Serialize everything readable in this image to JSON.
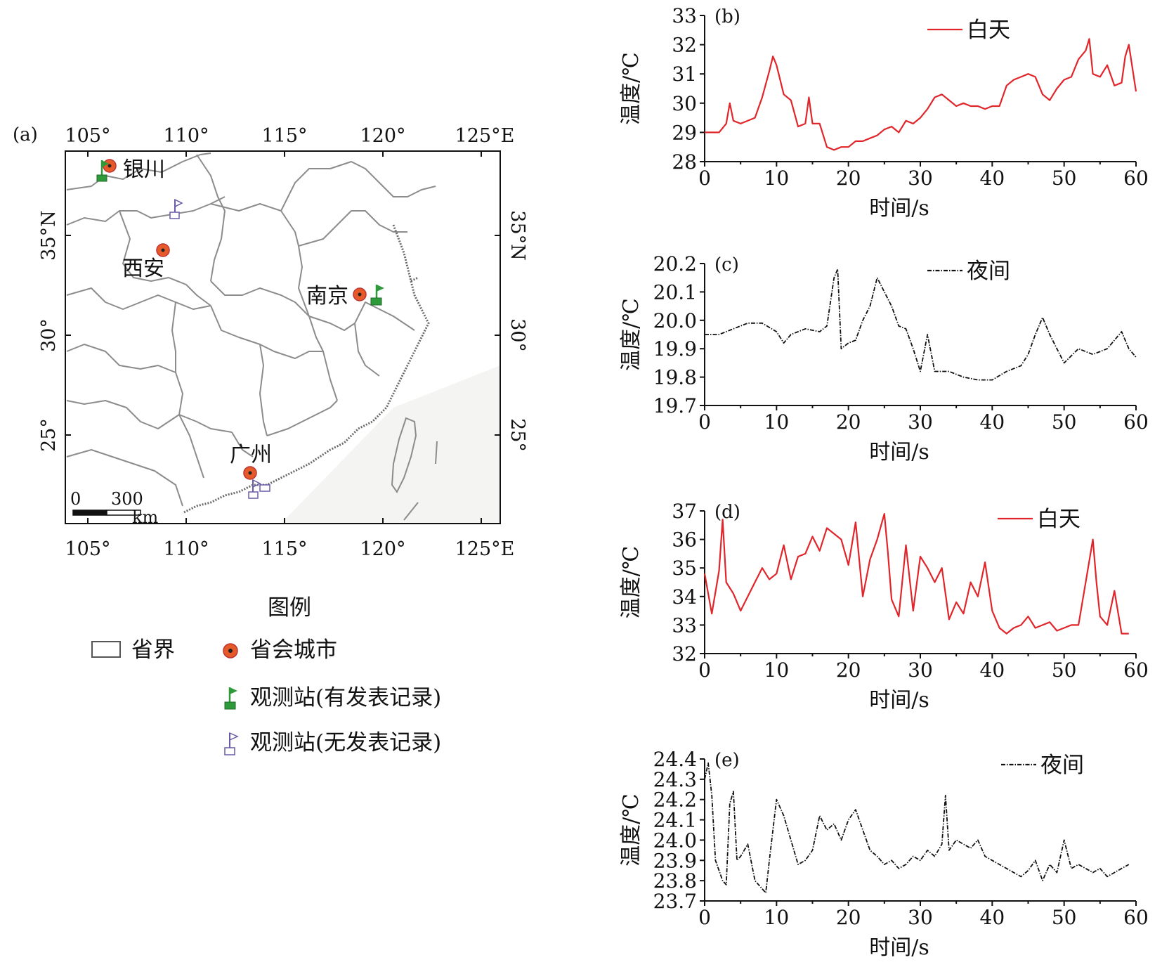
{
  "colors": {
    "day_line": "#e0262a",
    "night_line": "#111111",
    "capital_dot": "#e65a2a",
    "flag_recorded": "#2e9a3a",
    "flag_unrecorded": "#6a5aa8",
    "boundary": "#8c8c8c"
  },
  "map": {
    "panel_label": "(a)",
    "top_ticks": [
      "105°",
      "110°",
      "115°",
      "120°",
      "125°E"
    ],
    "bottom_ticks": [
      "105°",
      "110°",
      "115°",
      "120°",
      "125°E"
    ],
    "left_ticks": [
      "35°N",
      "30°",
      "25°"
    ],
    "right_ticks": [
      "35°N",
      "30°",
      "25°"
    ],
    "cities": {
      "yinchuan": "银川",
      "xian": "西安",
      "nanjing": "南京",
      "guangzhou": "广州"
    },
    "scale": {
      "zero": "0",
      "value": "300",
      "unit": "km"
    },
    "legend": {
      "title": "图例",
      "province": "省界",
      "capital": "省会城市",
      "station_recorded": "观测站(有发表记录)",
      "station_unrecorded": "观测站(无发表记录)"
    }
  },
  "chart_data": [
    {
      "type": "line",
      "panel_label": "(b)",
      "legend": "白天",
      "xlabel": "时间/s",
      "ylabel": "温度/℃",
      "xlim": [
        0,
        60
      ],
      "ylim": [
        28,
        33
      ],
      "xticks": [
        "0",
        "10",
        "20",
        "30",
        "40",
        "50",
        "60"
      ],
      "yticks": [
        "28",
        "29",
        "30",
        "31",
        "32",
        "33"
      ],
      "style": "solid",
      "x": [
        0,
        2,
        3,
        3.5,
        4,
        5,
        7,
        8,
        9,
        9.5,
        10,
        11,
        12,
        13,
        14,
        14.5,
        15,
        16,
        17,
        18,
        19,
        20,
        21,
        22,
        23,
        24,
        25,
        26,
        27,
        28,
        29,
        30,
        31,
        32,
        33,
        34,
        35,
        36,
        37,
        38,
        39,
        40,
        41,
        42,
        43,
        44,
        45,
        46,
        47,
        48,
        49,
        50,
        51,
        52,
        53,
        53.5,
        54,
        55,
        56,
        57,
        58,
        58.5,
        59,
        60
      ],
      "y": [
        29.0,
        29.0,
        29.3,
        30.0,
        29.4,
        29.3,
        29.5,
        30.2,
        31.1,
        31.6,
        31.3,
        30.3,
        30.1,
        29.2,
        29.3,
        30.2,
        29.3,
        29.3,
        28.5,
        28.4,
        28.5,
        28.5,
        28.7,
        28.7,
        28.8,
        28.9,
        29.1,
        29.2,
        29.0,
        29.4,
        29.3,
        29.5,
        29.8,
        30.2,
        30.3,
        30.1,
        29.9,
        30.0,
        29.9,
        29.9,
        29.8,
        29.9,
        29.9,
        30.6,
        30.8,
        30.9,
        31.0,
        30.9,
        30.3,
        30.1,
        30.5,
        30.8,
        30.9,
        31.5,
        31.8,
        32.2,
        31.0,
        30.9,
        31.3,
        30.6,
        30.7,
        31.6,
        32.0,
        30.4
      ]
    },
    {
      "type": "line",
      "panel_label": "(c)",
      "legend": "夜间",
      "xlabel": "时间/s",
      "ylabel": "温度/℃",
      "xlim": [
        0,
        60
      ],
      "ylim": [
        19.7,
        20.2
      ],
      "xticks": [
        "0",
        "10",
        "20",
        "30",
        "40",
        "50",
        "60"
      ],
      "yticks": [
        "19.7",
        "19.8",
        "19.9",
        "20.0",
        "20.1",
        "20.2"
      ],
      "style": "dashdot",
      "x": [
        0,
        2,
        4,
        6,
        8,
        10,
        11,
        12,
        14,
        16,
        17,
        18,
        18.5,
        19,
        20,
        21,
        22,
        23,
        24,
        25,
        26,
        27,
        28,
        29,
        30,
        31,
        32,
        34,
        36,
        38,
        40,
        42,
        44,
        45,
        46,
        47,
        48,
        49,
        50,
        52,
        54,
        56,
        58,
        59,
        60
      ],
      "y": [
        19.95,
        19.95,
        19.97,
        19.99,
        19.99,
        19.96,
        19.92,
        19.95,
        19.97,
        19.96,
        19.98,
        20.15,
        20.18,
        19.9,
        19.92,
        19.93,
        20.0,
        20.05,
        20.15,
        20.1,
        20.05,
        19.98,
        19.97,
        19.9,
        19.82,
        19.95,
        19.82,
        19.82,
        19.8,
        19.79,
        19.79,
        19.82,
        19.84,
        19.88,
        19.95,
        20.01,
        19.95,
        19.9,
        19.85,
        19.9,
        19.88,
        19.9,
        19.96,
        19.9,
        19.87
      ]
    },
    {
      "type": "line",
      "panel_label": "(d)",
      "legend": "白天",
      "xlabel": "时间/s",
      "ylabel": "温度/℃",
      "xlim": [
        0,
        60
      ],
      "ylim": [
        32,
        37
      ],
      "xticks": [
        "0",
        "10",
        "20",
        "30",
        "40",
        "50",
        "60"
      ],
      "yticks": [
        "32",
        "33",
        "34",
        "35",
        "36",
        "37"
      ],
      "style": "solid",
      "x": [
        0,
        1,
        2,
        2.5,
        3,
        4,
        5,
        6,
        7,
        8,
        9,
        10,
        11,
        12,
        13,
        14,
        15,
        16,
        17,
        18,
        19,
        20,
        21,
        22,
        23,
        24,
        25,
        25.5,
        26,
        27,
        28,
        29,
        30,
        31,
        32,
        33,
        34,
        35,
        36,
        37,
        38,
        39,
        40,
        41,
        42,
        43,
        44,
        45,
        46,
        47,
        48,
        49,
        50,
        51,
        52,
        53,
        54,
        54.5,
        55,
        56,
        57,
        58,
        59
      ],
      "y": [
        34.8,
        33.4,
        34.9,
        36.7,
        34.5,
        34.1,
        33.5,
        34.0,
        34.5,
        35.0,
        34.6,
        34.8,
        35.8,
        34.6,
        35.4,
        35.5,
        36.1,
        35.6,
        36.4,
        36.2,
        36.0,
        35.1,
        36.6,
        34.0,
        35.3,
        36.0,
        36.9,
        35.5,
        33.9,
        33.3,
        35.8,
        33.5,
        35.4,
        35.0,
        34.5,
        35.0,
        33.2,
        33.8,
        33.4,
        34.5,
        34.0,
        35.2,
        33.5,
        32.9,
        32.7,
        32.9,
        33.0,
        33.3,
        32.9,
        33.0,
        33.1,
        32.8,
        32.9,
        33.0,
        33.0,
        34.5,
        36.0,
        34.5,
        33.3,
        33.0,
        34.2,
        32.7,
        32.7
      ]
    },
    {
      "type": "line",
      "panel_label": "(e)",
      "legend": "夜间",
      "xlabel": "时间/s",
      "ylabel": "温度/℃",
      "xlim": [
        0,
        60
      ],
      "ylim": [
        23.7,
        24.4
      ],
      "xticks": [
        "0",
        "10",
        "20",
        "30",
        "40",
        "50",
        "60"
      ],
      "yticks": [
        "23.7",
        "23.8",
        "23.9",
        "24.0",
        "24.1",
        "24.2",
        "24.3",
        "24.4"
      ],
      "style": "dashdot",
      "x": [
        0,
        0.5,
        1,
        1.5,
        2,
        2.5,
        3,
        3.5,
        4,
        4.5,
        5,
        6,
        7,
        8,
        8.5,
        9,
        10,
        11,
        12,
        13,
        14,
        15,
        16,
        17,
        18,
        19,
        20,
        21,
        22,
        23,
        24,
        25,
        26,
        27,
        28,
        29,
        30,
        31,
        32,
        33,
        33.5,
        34,
        35,
        36,
        37,
        38,
        39,
        40,
        41,
        42,
        43,
        44,
        45,
        46,
        47,
        48,
        49,
        50,
        51,
        52,
        53,
        54,
        55,
        56,
        57,
        58,
        59
      ],
      "y": [
        24.3,
        24.38,
        24.22,
        23.9,
        23.85,
        23.8,
        23.78,
        24.18,
        24.24,
        23.9,
        23.92,
        23.98,
        23.8,
        23.76,
        23.74,
        23.9,
        24.2,
        24.12,
        24.0,
        23.88,
        23.9,
        23.95,
        24.12,
        24.05,
        24.08,
        24.0,
        24.1,
        24.15,
        24.05,
        23.95,
        23.92,
        23.88,
        23.9,
        23.86,
        23.88,
        23.92,
        23.9,
        23.95,
        23.92,
        23.98,
        24.22,
        23.95,
        24.0,
        23.98,
        23.96,
        24.0,
        23.92,
        23.9,
        23.88,
        23.86,
        23.84,
        23.82,
        23.85,
        23.9,
        23.8,
        23.88,
        23.84,
        24.0,
        23.86,
        23.88,
        23.86,
        23.84,
        23.86,
        23.82,
        23.84,
        23.86,
        23.88
      ]
    }
  ]
}
